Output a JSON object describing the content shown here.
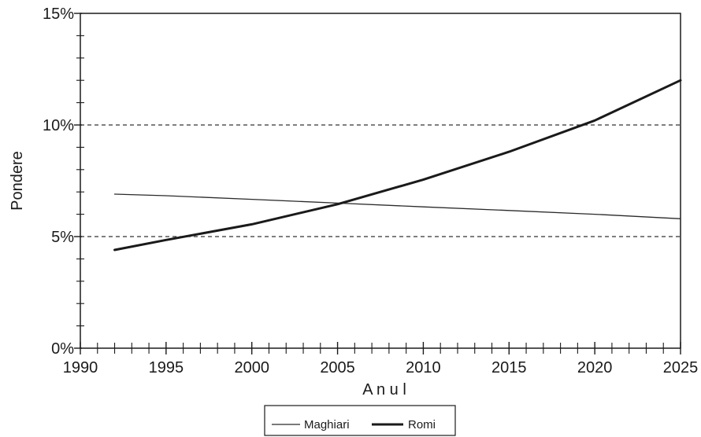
{
  "chart_data": {
    "type": "line",
    "title": "",
    "xlabel": "A n u l",
    "ylabel": "Pondere",
    "xlim": [
      1990,
      2025
    ],
    "ylim": [
      0,
      15
    ],
    "x_ticks": [
      1990,
      1995,
      2000,
      2005,
      2010,
      2015,
      2020,
      2025
    ],
    "x_tick_labels": [
      "1990",
      "1995",
      "2000",
      "2005",
      "2010",
      "2015",
      "2020",
      "2025"
    ],
    "y_ticks": [
      0,
      5,
      10,
      15
    ],
    "y_tick_labels": [
      "0%",
      "5%",
      "10%",
      "15%"
    ],
    "reference_lines_y": [
      5,
      10
    ],
    "legend_position": "bottom-center",
    "x": [
      1992,
      1995,
      2000,
      2005,
      2010,
      2015,
      2020,
      2025
    ],
    "series": [
      {
        "name": "Maghiari",
        "values": [
          6.9,
          6.83,
          6.67,
          6.5,
          6.33,
          6.17,
          6.0,
          5.8
        ],
        "color": "#2a2a2a",
        "line_style": "thin"
      },
      {
        "name": "Romi",
        "values": [
          4.4,
          4.85,
          5.55,
          6.45,
          7.55,
          8.8,
          10.2,
          12.0
        ],
        "color": "#1a1a1a",
        "line_style": "thick"
      }
    ]
  }
}
